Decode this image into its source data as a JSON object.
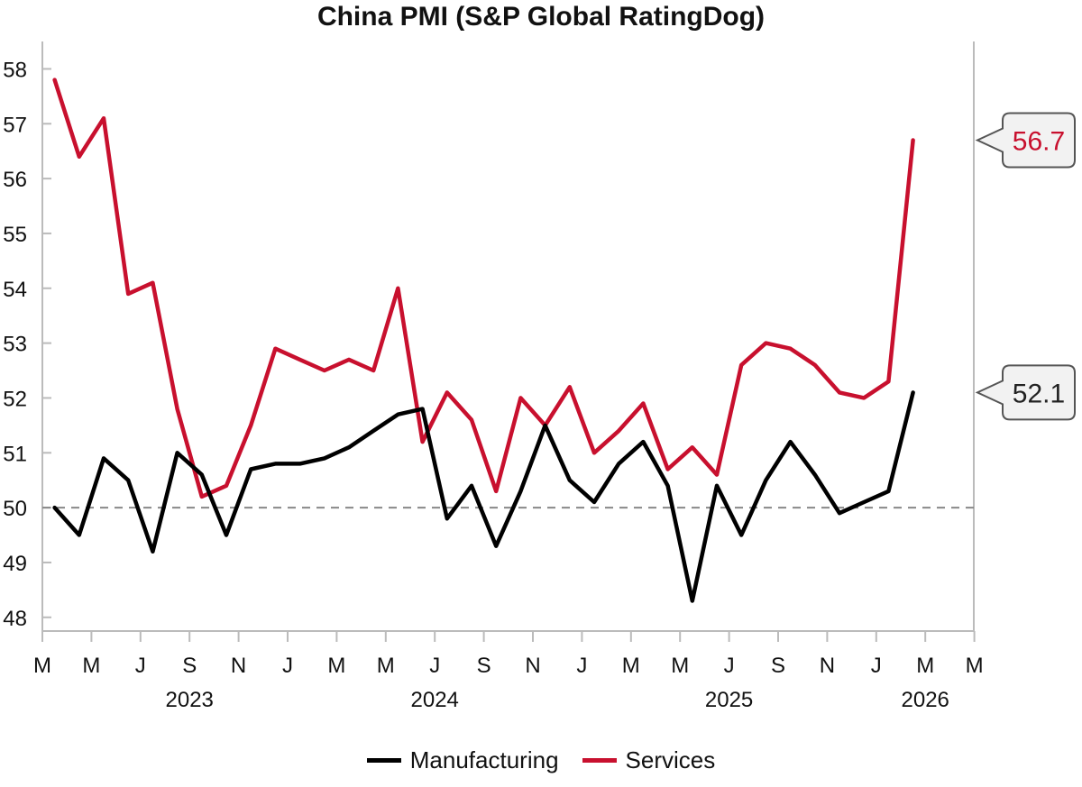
{
  "chart_data": {
    "type": "line",
    "title": "China PMI (S&P Global RatingDog)",
    "ylim": [
      47.75,
      58.5
    ],
    "yticks": [
      48,
      49,
      50,
      51,
      52,
      53,
      54,
      55,
      56,
      57,
      58
    ],
    "reference_line": 50,
    "x_start_month": "2023-03",
    "x_month_ticks": [
      "M",
      "M",
      "J",
      "S",
      "N",
      "J",
      "M",
      "M",
      "J",
      "S",
      "N",
      "J",
      "M",
      "M",
      "J",
      "S",
      "N",
      "J",
      "M",
      "M"
    ],
    "years": [
      {
        "label": "2023",
        "center_month_index": 6
      },
      {
        "label": "2024",
        "center_month_index": 16
      },
      {
        "label": "2025",
        "center_month_index": 28
      },
      {
        "label": "2026",
        "center_month_index": 36
      }
    ],
    "series": [
      {
        "name": "Manufacturing",
        "color": "#000000",
        "values": [
          50.0,
          49.5,
          50.9,
          50.5,
          49.2,
          51.0,
          50.6,
          49.5,
          50.7,
          50.8,
          50.8,
          50.9,
          51.1,
          51.4,
          51.7,
          51.8,
          49.8,
          50.4,
          49.3,
          50.3,
          51.5,
          50.5,
          50.1,
          50.8,
          51.2,
          50.4,
          48.3,
          50.4,
          49.5,
          50.5,
          51.2,
          50.6,
          49.9,
          50.1,
          50.3,
          52.1
        ],
        "last_label": "52.1"
      },
      {
        "name": "Services",
        "color": "#c8102e",
        "values": [
          57.8,
          56.4,
          57.1,
          53.9,
          54.1,
          51.8,
          50.2,
          50.4,
          51.5,
          52.9,
          52.7,
          52.5,
          52.7,
          52.5,
          54.0,
          51.2,
          52.1,
          51.6,
          50.3,
          52.0,
          51.5,
          52.2,
          51.0,
          51.4,
          51.9,
          50.7,
          51.1,
          50.6,
          52.6,
          53.0,
          52.9,
          52.6,
          52.1,
          52.0,
          52.3,
          56.7
        ],
        "last_label": "56.7"
      }
    ]
  },
  "legend": {
    "manufacturing_label": "Manufacturing",
    "services_label": "Services"
  }
}
